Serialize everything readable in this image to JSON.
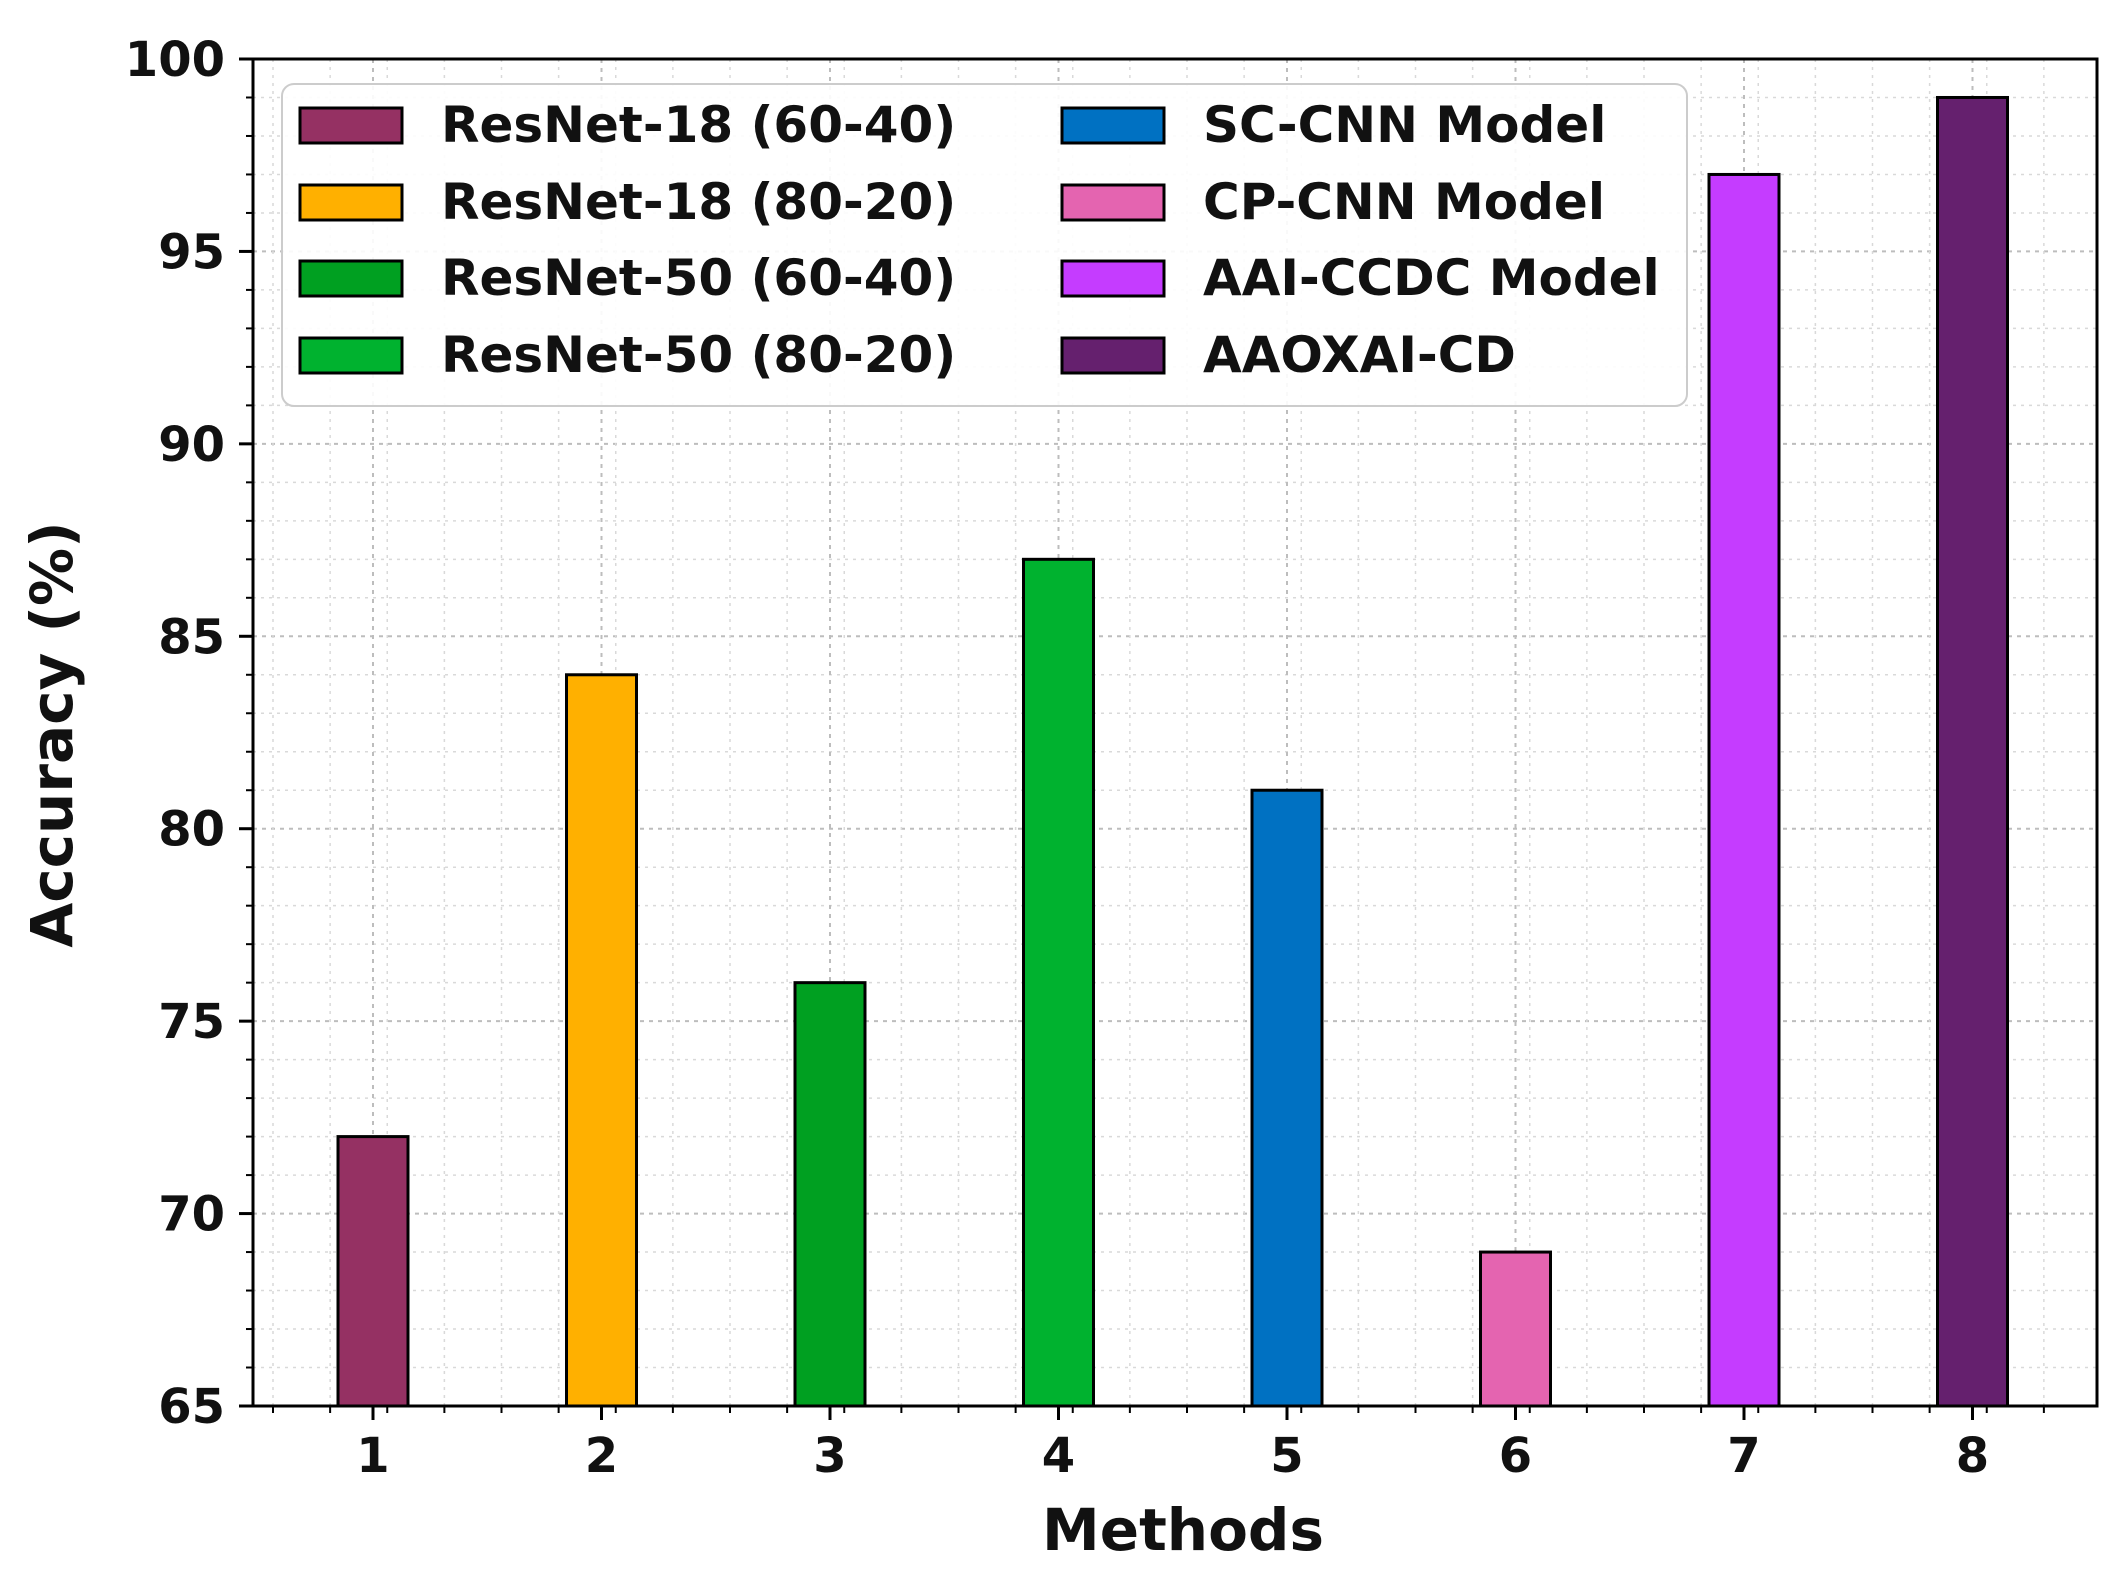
{
  "chart_data": {
    "type": "bar",
    "title": "",
    "xlabel": "Methods",
    "ylabel": "Accuracy (%)",
    "ylim": [
      65,
      100
    ],
    "yticks": [
      65,
      70,
      75,
      80,
      85,
      90,
      95,
      100
    ],
    "categories": [
      "1",
      "2",
      "3",
      "4",
      "5",
      "6",
      "7",
      "8"
    ],
    "grid": true,
    "legend_position": "top-left",
    "series": [
      {
        "name": "ResNet-18 (60-40)",
        "category": "1",
        "value": 72,
        "color": "#953163"
      },
      {
        "name": "ResNet-18 (80-20)",
        "category": "2",
        "value": 84,
        "color": "#FFB000"
      },
      {
        "name": "ResNet-50 (60-40)",
        "category": "3",
        "value": 76,
        "color": "#00A021"
      },
      {
        "name": "ResNet-50 (80-20)",
        "category": "4",
        "value": 87,
        "color": "#00B22F"
      },
      {
        "name": "SC-CNN Model",
        "category": "5",
        "value": 81,
        "color": "#0071C2"
      },
      {
        "name": "CP-CNN Model",
        "category": "6",
        "value": 69,
        "color": "#E464B0"
      },
      {
        "name": "AAI-CCDC Model",
        "category": "7",
        "value": 97,
        "color": "#C53CFF"
      },
      {
        "name": "AAOXAI-CD",
        "category": "8",
        "value": 99,
        "color": "#65206E"
      }
    ]
  }
}
